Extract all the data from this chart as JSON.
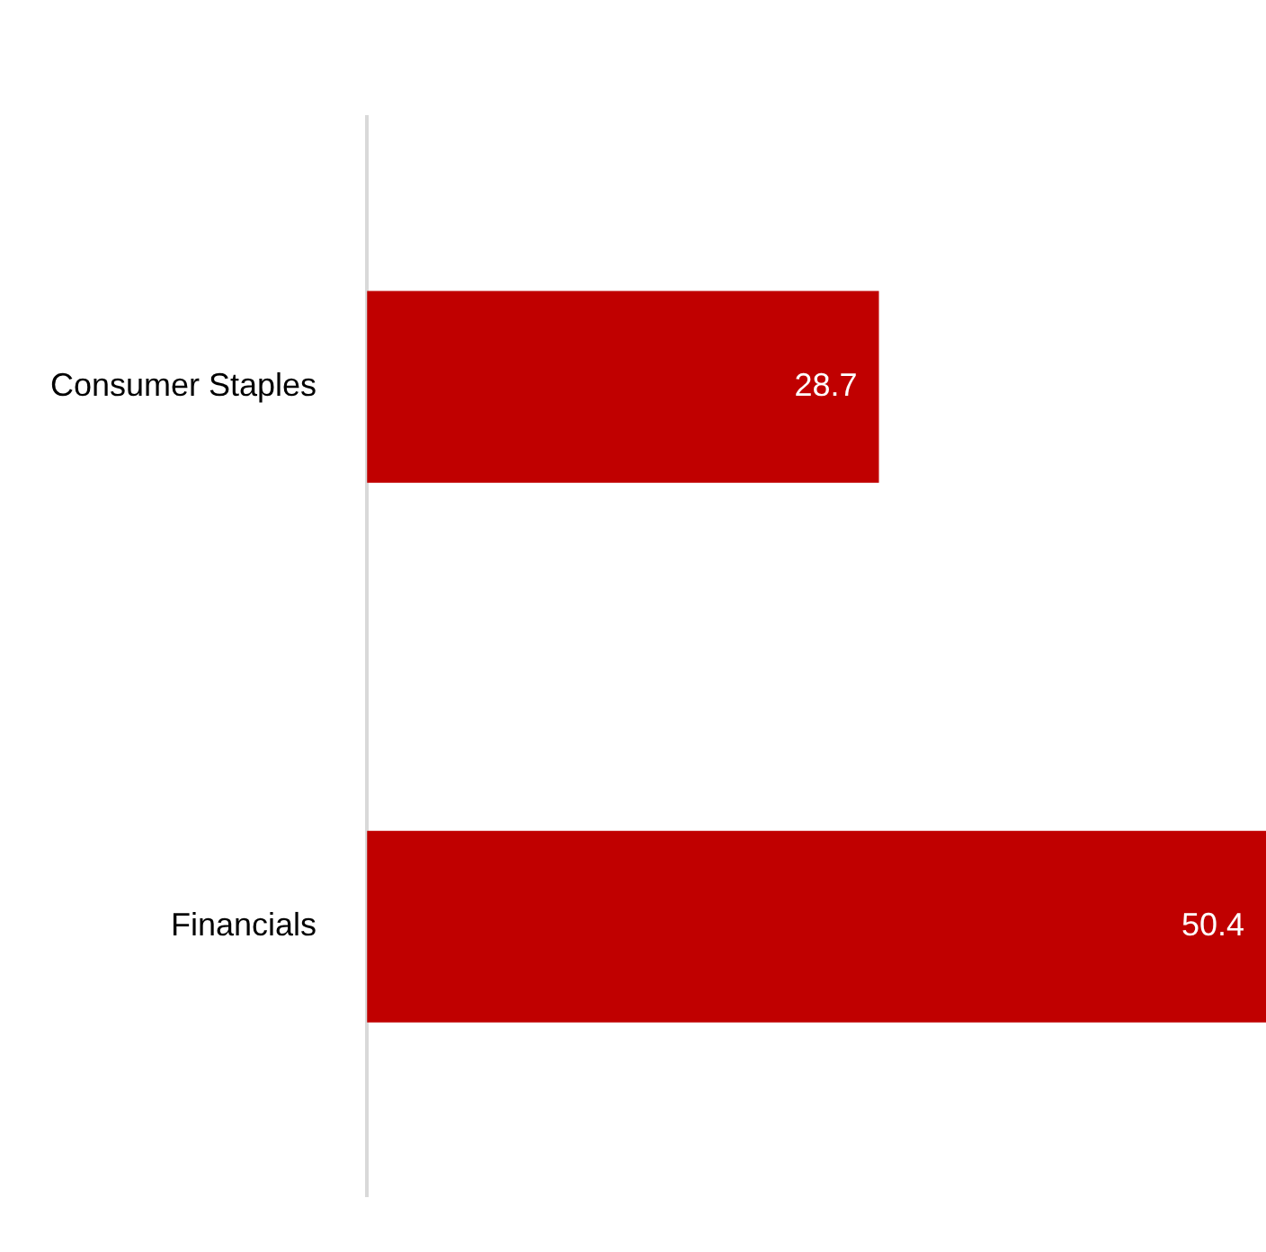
{
  "chart_data": {
    "type": "bar",
    "orientation": "horizontal",
    "categories": [
      "Consumer Staples",
      "Financials"
    ],
    "series": [
      {
        "color": "#c00000",
        "values": [
          28.7,
          50.4
        ]
      }
    ],
    "data_labels": true,
    "grid": false,
    "legend": false,
    "tick_labels": "y"
  }
}
